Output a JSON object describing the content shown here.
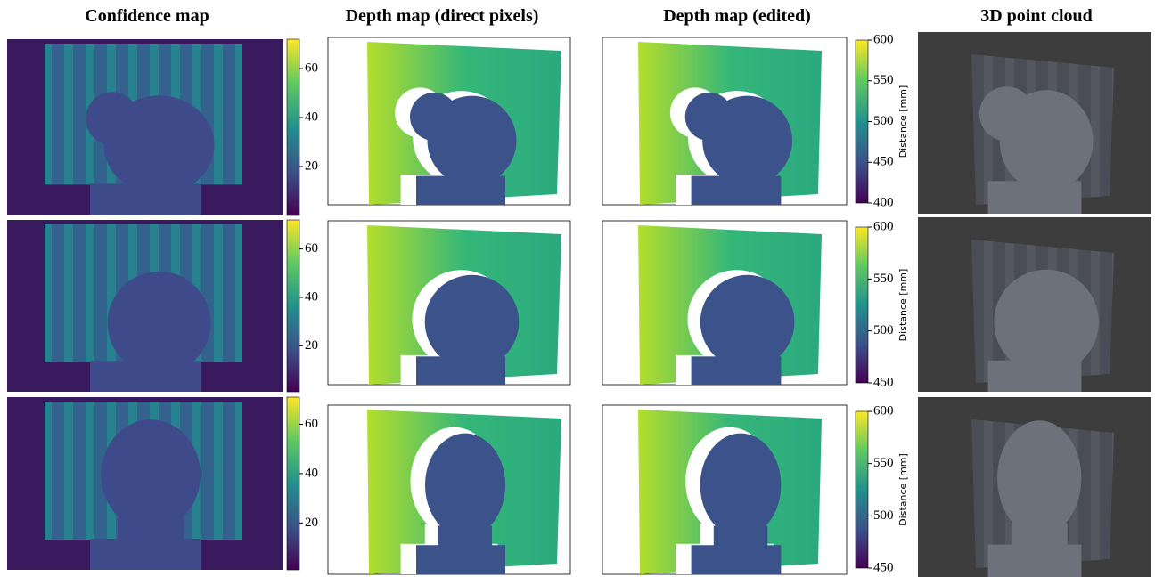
{
  "columns": [
    {
      "title": "Confidence map"
    },
    {
      "title": "Depth map (direct pixels)"
    },
    {
      "title": "Depth map (edited)"
    },
    {
      "title": "3D point cloud"
    }
  ],
  "confidence_colorbars": [
    {
      "lim": [
        0,
        72
      ],
      "ticks": [
        20,
        40,
        60
      ]
    },
    {
      "lim": [
        1,
        72
      ],
      "ticks": [
        20,
        40,
        60
      ]
    },
    {
      "lim": [
        1,
        71
      ],
      "ticks": [
        20,
        40,
        60
      ]
    }
  ],
  "depth_colorbars": [
    {
      "label": "Distance [mm]",
      "lim": [
        400,
        600
      ],
      "ticks": [
        400,
        450,
        500,
        550,
        600
      ]
    },
    {
      "label": "Distance [mm]",
      "lim": [
        450,
        600
      ],
      "ticks": [
        450,
        500,
        550,
        600
      ]
    },
    {
      "label": "Distance [mm]",
      "lim": [
        450,
        600
      ],
      "ticks": [
        450,
        500,
        550,
        600
      ]
    }
  ]
}
